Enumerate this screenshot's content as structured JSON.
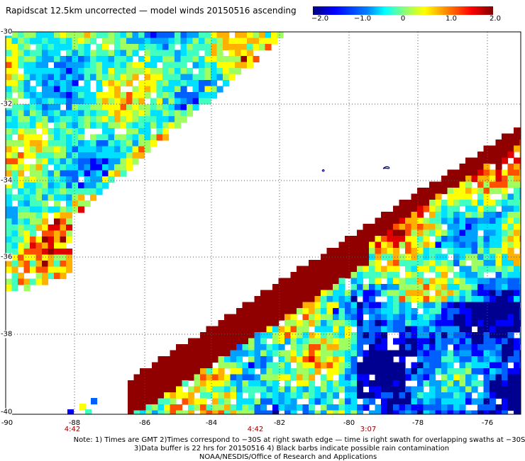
{
  "title": "Rapidscat 12.5km uncorrected — model winds 20150516 ascending",
  "colorbar": {
    "ticks": [
      "−2.0",
      "−1.0",
      "0",
      "1.0",
      "2.0"
    ]
  },
  "lat_labels": [
    "-30",
    "-32",
    "-34",
    "-36",
    "-38",
    "-40"
  ],
  "lon_labels": [
    "-90",
    "-88",
    "-86",
    "-84",
    "-82",
    "-80",
    "-78",
    "-76"
  ],
  "time_labels": [
    "4:42",
    "4:42",
    "3:07"
  ],
  "notes": {
    "line1": "Note: 1) Times are GMT 2)Times correspond to −30S at right swath edge — time is right swath for overlapping swaths at −30S",
    "line2": "3)Data buffer is 22 hrs for 20150516 4) Black barbs indicate possible rain contamination",
    "line3": "NOAA/NESDIS/Office of Research and Applications"
  },
  "colors": {
    "grid": "#555555",
    "coast": "#000080",
    "background": "#ffffff"
  }
}
